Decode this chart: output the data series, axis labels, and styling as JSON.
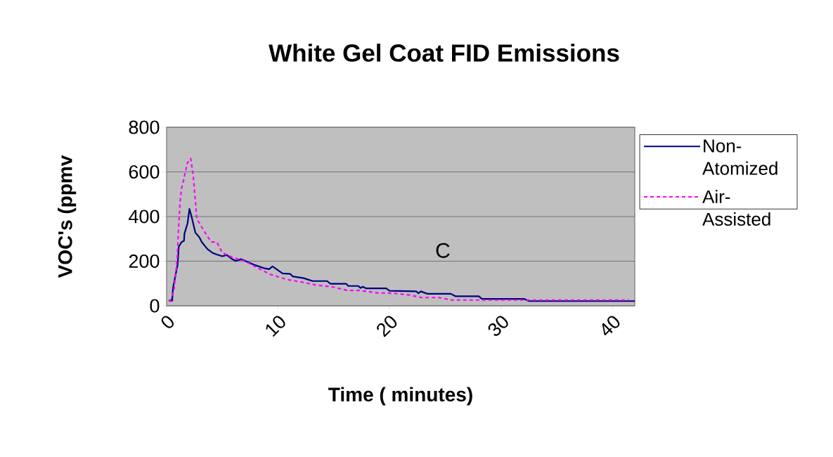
{
  "chart_data": {
    "type": "line",
    "title": "White Gel Coat FID Emissions",
    "xlabel": "Time ( minutes)",
    "ylabel": "VOC's (ppmv",
    "xlim": [
      0,
      42
    ],
    "xticks": [
      0,
      10,
      20,
      30,
      40
    ],
    "ylim": [
      0,
      800
    ],
    "yticks": [
      0,
      200,
      400,
      600,
      800
    ],
    "grid": "y",
    "legend": "right",
    "annotations": [
      "C"
    ],
    "series": [
      {
        "name": "Non-Atomized",
        "color": "#000080",
        "line_style": "solid",
        "x": [
          0.2,
          0.5,
          0.57,
          0.99,
          1.09,
          1.35,
          1.56,
          1.6,
          1.88,
          2.05,
          2.2,
          2.58,
          2.94,
          3.15,
          3.67,
          4.1,
          4.5,
          5.0,
          5.4,
          5.8,
          6.2,
          6.7,
          7.3,
          7.9,
          8.7,
          9.2,
          9.5,
          10.4,
          11.1,
          11.3,
          12.3,
          13.1,
          14.4,
          14.7,
          16.1,
          16.3,
          17.2,
          17.4,
          17.6,
          17.9,
          19.7,
          20.0,
          22.4,
          22.6,
          22.8,
          23.4,
          25.5,
          25.9,
          28.0,
          28.3,
          32.1,
          32.5,
          42
        ],
        "values": [
          23,
          23,
          79,
          185,
          265,
          286,
          291,
          323,
          370,
          434,
          407,
          328,
          307,
          286,
          254,
          238,
          230,
          222,
          228,
          212,
          201,
          209,
          196,
          183,
          169,
          164,
          177,
          145,
          143,
          132,
          124,
          111,
          111,
          99,
          99,
          89,
          89,
          80,
          86,
          78,
          78,
          67,
          65,
          56,
          65,
          54,
          54,
          43,
          43,
          31,
          31,
          21,
          21
        ]
      },
      {
        "name": "Air-Assisted",
        "color": "#ff00ff",
        "line_style": "dashed",
        "x": [
          0.3,
          0.66,
          0.94,
          1.05,
          1.2,
          1.35,
          1.56,
          1.85,
          2.16,
          2.37,
          2.6,
          2.7,
          3.45,
          4.0,
          4.5,
          5.0,
          5.9,
          7.1,
          8.4,
          9.3,
          10.8,
          12.2,
          13.4,
          14.9,
          16.2,
          17.3,
          18.9,
          20.4,
          21.7,
          22.9,
          24.4,
          25.6,
          27.1,
          28.5,
          32.9,
          38.7,
          41.5
        ],
        "values": [
          18,
          69,
          206,
          323,
          460,
          528,
          570,
          639,
          660,
          591,
          460,
          391,
          328,
          286,
          286,
          238,
          217,
          198,
          164,
          141,
          118,
          106,
          93,
          85,
          69,
          69,
          58,
          56,
          49,
          37,
          37,
          26,
          26,
          26,
          26,
          26,
          26
        ]
      }
    ]
  }
}
